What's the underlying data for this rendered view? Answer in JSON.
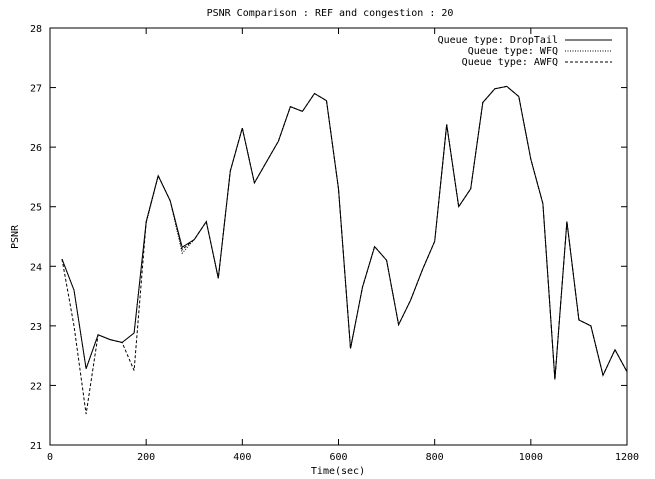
{
  "chart_data": {
    "type": "line",
    "title": "PSNR Comparison : REF and congestion : 20",
    "xlabel": "Time(sec)",
    "ylabel": "PSNR",
    "xlim": [
      0,
      1200
    ],
    "ylim": [
      21,
      28
    ],
    "xticks": [
      0,
      200,
      400,
      600,
      800,
      1000,
      1200
    ],
    "yticks": [
      21,
      22,
      23,
      24,
      25,
      26,
      27,
      28
    ],
    "grid": false,
    "legend_position": "top-right",
    "x": [
      25,
      50,
      75,
      100,
      125,
      150,
      175,
      200,
      225,
      250,
      275,
      300,
      325,
      350,
      375,
      400,
      425,
      450,
      475,
      500,
      525,
      550,
      575,
      600,
      625,
      650,
      675,
      700,
      725,
      750,
      775,
      800,
      825,
      850,
      875,
      900,
      925,
      950,
      975,
      1000,
      1025,
      1050,
      1075,
      1100,
      1125,
      1150,
      1175,
      1200
    ],
    "series": [
      {
        "name": "Queue type: DropTail",
        "dash": "solid",
        "values": [
          24.12,
          23.6,
          22.28,
          22.85,
          22.77,
          22.72,
          22.88,
          24.75,
          25.52,
          25.1,
          24.32,
          24.45,
          24.75,
          23.8,
          25.6,
          26.32,
          25.4,
          25.75,
          26.1,
          26.68,
          26.6,
          26.9,
          26.78,
          25.3,
          22.62,
          23.65,
          24.33,
          24.1,
          23.02,
          23.43,
          23.95,
          24.42,
          26.38,
          25.0,
          25.3,
          26.75,
          26.98,
          27.02,
          26.85,
          25.8,
          25.05,
          22.1,
          24.75,
          23.1,
          23.0,
          22.17,
          22.6,
          22.23
        ]
      },
      {
        "name": "Queue type: WFQ",
        "dash": "dotted",
        "values": [
          24.12,
          23.6,
          22.28,
          22.85,
          22.77,
          22.72,
          22.88,
          24.72,
          25.52,
          25.1,
          24.22,
          24.45,
          24.75,
          23.8,
          25.6,
          26.32,
          25.4,
          25.75,
          26.1,
          26.68,
          26.6,
          26.9,
          26.78,
          25.3,
          22.62,
          23.65,
          24.33,
          24.1,
          23.02,
          23.43,
          23.95,
          24.42,
          26.38,
          25.0,
          25.3,
          26.75,
          26.98,
          27.02,
          26.85,
          25.8,
          25.05,
          22.1,
          24.75,
          23.1,
          23.0,
          22.17,
          22.6,
          22.23
        ]
      },
      {
        "name": "Queue type: AWFQ",
        "dash": "dashed",
        "values": [
          24.12,
          23.0,
          21.52,
          22.85,
          22.77,
          22.72,
          22.25,
          24.75,
          25.52,
          25.1,
          24.28,
          24.45,
          24.75,
          23.8,
          25.6,
          26.32,
          25.4,
          25.75,
          26.1,
          26.68,
          26.6,
          26.9,
          26.78,
          25.3,
          22.62,
          23.65,
          24.33,
          24.1,
          23.02,
          23.43,
          23.95,
          24.42,
          26.38,
          25.0,
          25.3,
          26.75,
          26.98,
          27.02,
          26.85,
          25.8,
          25.05,
          22.1,
          24.75,
          23.1,
          23.0,
          22.17,
          22.6,
          22.23
        ]
      }
    ]
  }
}
